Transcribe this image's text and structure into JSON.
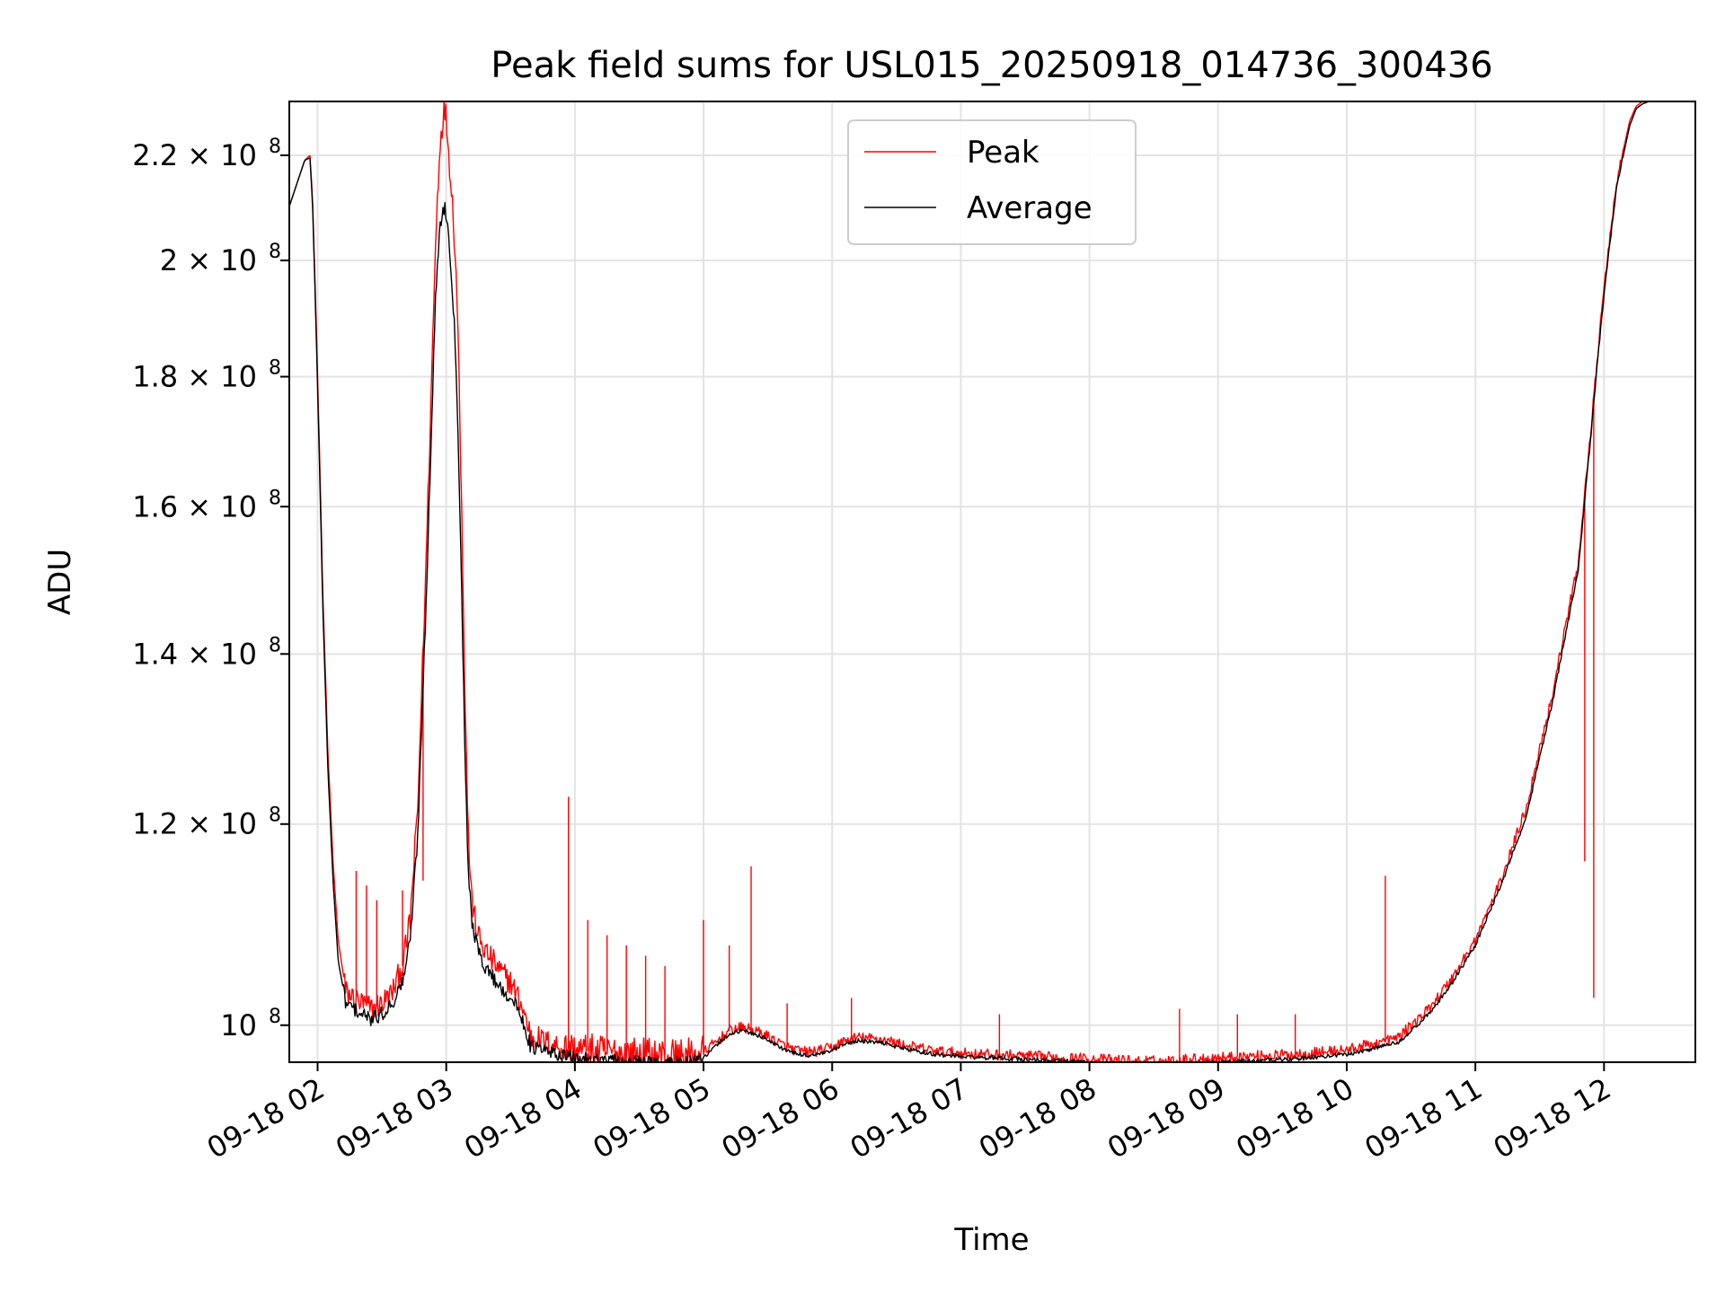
{
  "chart_data": {
    "type": "line",
    "title": "Peak field sums for USL015_20250918_014736_300436",
    "xlabel": "Time",
    "ylabel": "ADU",
    "yscale": "log",
    "ylim": [
      96700000,
      231000000
    ],
    "xlim": [
      1.78,
      12.71
    ],
    "grid": true,
    "legend_position": "upper-center",
    "x_unit": "hours (2025-09-18)",
    "x_ticks": [
      {
        "value": 2,
        "label": "09-18 02"
      },
      {
        "value": 3,
        "label": "09-18 03"
      },
      {
        "value": 4,
        "label": "09-18 04"
      },
      {
        "value": 5,
        "label": "09-18 05"
      },
      {
        "value": 6,
        "label": "09-18 06"
      },
      {
        "value": 7,
        "label": "09-18 07"
      },
      {
        "value": 8,
        "label": "09-18 08"
      },
      {
        "value": 9,
        "label": "09-18 09"
      },
      {
        "value": 10,
        "label": "09-18 10"
      },
      {
        "value": 11,
        "label": "09-18 11"
      },
      {
        "value": 12,
        "label": "09-18 12"
      }
    ],
    "y_ticks": [
      {
        "value": 100000000,
        "mant": "10",
        "exp": "8"
      },
      {
        "value": 120000000,
        "mant": "1.2 × 10",
        "exp": "8"
      },
      {
        "value": 140000000,
        "mant": "1.4 × 10",
        "exp": "8"
      },
      {
        "value": 160000000,
        "mant": "1.6 × 10",
        "exp": "8"
      },
      {
        "value": 180000000,
        "mant": "1.8 × 10",
        "exp": "8"
      },
      {
        "value": 200000000,
        "mant": "2 × 10",
        "exp": "8"
      },
      {
        "value": 220000000,
        "mant": "2.2 × 10",
        "exp": "8"
      }
    ],
    "series": [
      {
        "name": "Peak",
        "color": "#ff0000",
        "x": [
          1.78,
          1.82,
          1.86,
          1.9,
          1.94,
          1.96,
          2.0,
          2.04,
          2.08,
          2.12,
          2.16,
          2.22,
          2.28,
          2.34,
          2.42,
          2.5,
          2.58,
          2.66,
          2.72,
          2.78,
          2.84,
          2.88,
          2.92,
          2.95,
          2.98,
          3.0,
          3.02,
          3.04,
          3.06,
          3.08,
          3.1,
          3.12,
          3.14,
          3.16,
          3.18,
          3.2,
          3.23,
          3.26,
          3.3,
          3.36,
          3.42,
          3.5,
          3.58,
          3.66,
          3.72,
          3.76,
          3.82,
          3.9,
          4.0,
          4.1,
          4.2,
          4.35,
          4.5,
          4.7,
          4.9,
          5.0,
          5.1,
          5.2,
          5.3,
          5.4,
          5.5,
          5.6,
          5.7,
          5.8,
          5.9,
          6.0,
          6.1,
          6.2,
          6.4,
          6.6,
          6.8,
          7.0,
          7.2,
          7.4,
          7.6,
          7.8,
          8.0,
          8.2,
          8.4,
          8.6,
          8.7,
          8.8,
          9.0,
          9.2,
          9.4,
          9.6,
          9.8,
          10.0,
          10.2,
          10.4,
          10.6,
          10.8,
          11.0,
          11.2,
          11.4,
          11.6,
          11.8,
          11.9,
          12.0,
          12.1,
          12.2,
          12.25,
          12.3,
          12.35,
          12.4,
          12.45,
          12.5,
          12.55,
          12.6,
          12.65,
          12.71
        ],
        "y": [
          210000000,
          213000000,
          216000000,
          219000000,
          220000000,
          212000000,
          180000000,
          148000000,
          128000000,
          116000000,
          108000000,
          103000000,
          102500000,
          102000000,
          101500000,
          102000000,
          103000000,
          105500000,
          110000000,
          122000000,
          150000000,
          175000000,
          205000000,
          222000000,
          229000000,
          228000000,
          220000000,
          214000000,
          206000000,
          196000000,
          180000000,
          160000000,
          140000000,
          125000000,
          116000000,
          112000000,
          109500000,
          108000000,
          107000000,
          106000000,
          105000000,
          104000000,
          102000000,
          99000000,
          98800000,
          98500000,
          98300000,
          98000000,
          97800000,
          97700000,
          97600000,
          97500000,
          97400000,
          97300000,
          97300000,
          97600000,
          98500000,
          99500000,
          99800000,
          99500000,
          99000000,
          98300000,
          97800000,
          97600000,
          97700000,
          98000000,
          98600000,
          98900000,
          98700000,
          98100000,
          97700000,
          97500000,
          97400000,
          97300000,
          97200000,
          97100000,
          97000000,
          96900000,
          96800000,
          96800000,
          96900000,
          97000000,
          97100000,
          97200000,
          97300000,
          97400000,
          97600000,
          97800000,
          98300000,
          98900000,
          101000000,
          104000000,
          108000000,
          114000000,
          122000000,
          135000000,
          152000000,
          172000000,
          195000000,
          215000000,
          227000000,
          230000000,
          231000000,
          231000000,
          231000000,
          231000000,
          231000000,
          231000000,
          231000000,
          231000000,
          231000000
        ],
        "spikes": [
          {
            "x": 2.3,
            "y": 115000000
          },
          {
            "x": 2.38,
            "y": 113500000
          },
          {
            "x": 2.46,
            "y": 112000000
          },
          {
            "x": 2.66,
            "y": 113000000
          },
          {
            "x": 2.82,
            "y": 114000000
          },
          {
            "x": 3.95,
            "y": 123000000
          },
          {
            "x": 4.1,
            "y": 110000000
          },
          {
            "x": 4.25,
            "y": 108500000
          },
          {
            "x": 4.4,
            "y": 107500000
          },
          {
            "x": 4.55,
            "y": 106500000
          },
          {
            "x": 4.7,
            "y": 105500000
          },
          {
            "x": 5.0,
            "y": 110000000
          },
          {
            "x": 5.2,
            "y": 107500000
          },
          {
            "x": 5.37,
            "y": 115500000
          },
          {
            "x": 5.65,
            "y": 102000000
          },
          {
            "x": 6.15,
            "y": 102500000
          },
          {
            "x": 7.3,
            "y": 101000000
          },
          {
            "x": 8.7,
            "y": 101500000
          },
          {
            "x": 9.15,
            "y": 101000000
          },
          {
            "x": 9.6,
            "y": 101000000
          },
          {
            "x": 10.3,
            "y": 114500000
          },
          {
            "x": 11.85,
            "y": 116000000
          },
          {
            "x": 11.92,
            "y": 102500000
          }
        ]
      },
      {
        "name": "Average",
        "color": "#000000",
        "x": [
          1.78,
          1.82,
          1.86,
          1.9,
          1.94,
          1.96,
          2.0,
          2.04,
          2.08,
          2.12,
          2.16,
          2.22,
          2.28,
          2.34,
          2.42,
          2.5,
          2.58,
          2.66,
          2.72,
          2.78,
          2.84,
          2.88,
          2.92,
          2.95,
          2.98,
          3.0,
          3.02,
          3.04,
          3.06,
          3.08,
          3.1,
          3.12,
          3.14,
          3.16,
          3.18,
          3.2,
          3.23,
          3.26,
          3.3,
          3.36,
          3.42,
          3.5,
          3.58,
          3.66,
          3.72,
          3.76,
          3.82,
          3.9,
          4.0,
          4.1,
          4.2,
          4.35,
          4.5,
          4.7,
          4.9,
          5.0,
          5.1,
          5.2,
          5.3,
          5.4,
          5.5,
          5.6,
          5.7,
          5.8,
          5.9,
          6.0,
          6.1,
          6.2,
          6.4,
          6.6,
          6.8,
          7.0,
          7.2,
          7.4,
          7.6,
          7.8,
          8.0,
          8.2,
          8.4,
          8.6,
          8.7,
          8.8,
          9.0,
          9.2,
          9.4,
          9.6,
          9.8,
          10.0,
          10.2,
          10.4,
          10.6,
          10.8,
          11.0,
          11.2,
          11.4,
          11.6,
          11.8,
          11.9,
          12.0,
          12.1,
          12.2,
          12.25,
          12.3,
          12.35,
          12.4,
          12.45,
          12.5,
          12.55,
          12.6,
          12.65,
          12.71
        ],
        "y": [
          210000000,
          213000000,
          216000000,
          219000000,
          219500000,
          211000000,
          178000000,
          146000000,
          126000000,
          114000000,
          106000000,
          102000000,
          101500000,
          101000000,
          100500000,
          101000000,
          102000000,
          104000000,
          108000000,
          119000000,
          145000000,
          168000000,
          195000000,
          206000000,
          210000000,
          209000000,
          204000000,
          198000000,
          190000000,
          180000000,
          165000000,
          148000000,
          132000000,
          120000000,
          113000000,
          110000000,
          108000000,
          106500000,
          105500000,
          104500000,
          103500000,
          102500000,
          101000000,
          98000000,
          97900000,
          97700000,
          97500000,
          97300000,
          97100000,
          97000000,
          96900000,
          96800000,
          96700000,
          96700000,
          96700000,
          97000000,
          98200000,
          99200000,
          99500000,
          99200000,
          98700000,
          98000000,
          97500000,
          97300000,
          97400000,
          97700000,
          98300000,
          98600000,
          98400000,
          97800000,
          97400000,
          97200000,
          97100000,
          97000000,
          96900000,
          96800000,
          96700000,
          96600000,
          96500000,
          96400000,
          96500000,
          96600000,
          96700000,
          96800000,
          96900000,
          97000000,
          97200000,
          97400000,
          97900000,
          98500000,
          100500000,
          103500000,
          107500000,
          113500000,
          121000000,
          134000000,
          151000000,
          171000000,
          194000000,
          214000000,
          226000000,
          229500000,
          230500000,
          231000000,
          231000000,
          231000000,
          231000000,
          231000000,
          231000000,
          231000000,
          231000000
        ]
      }
    ]
  }
}
